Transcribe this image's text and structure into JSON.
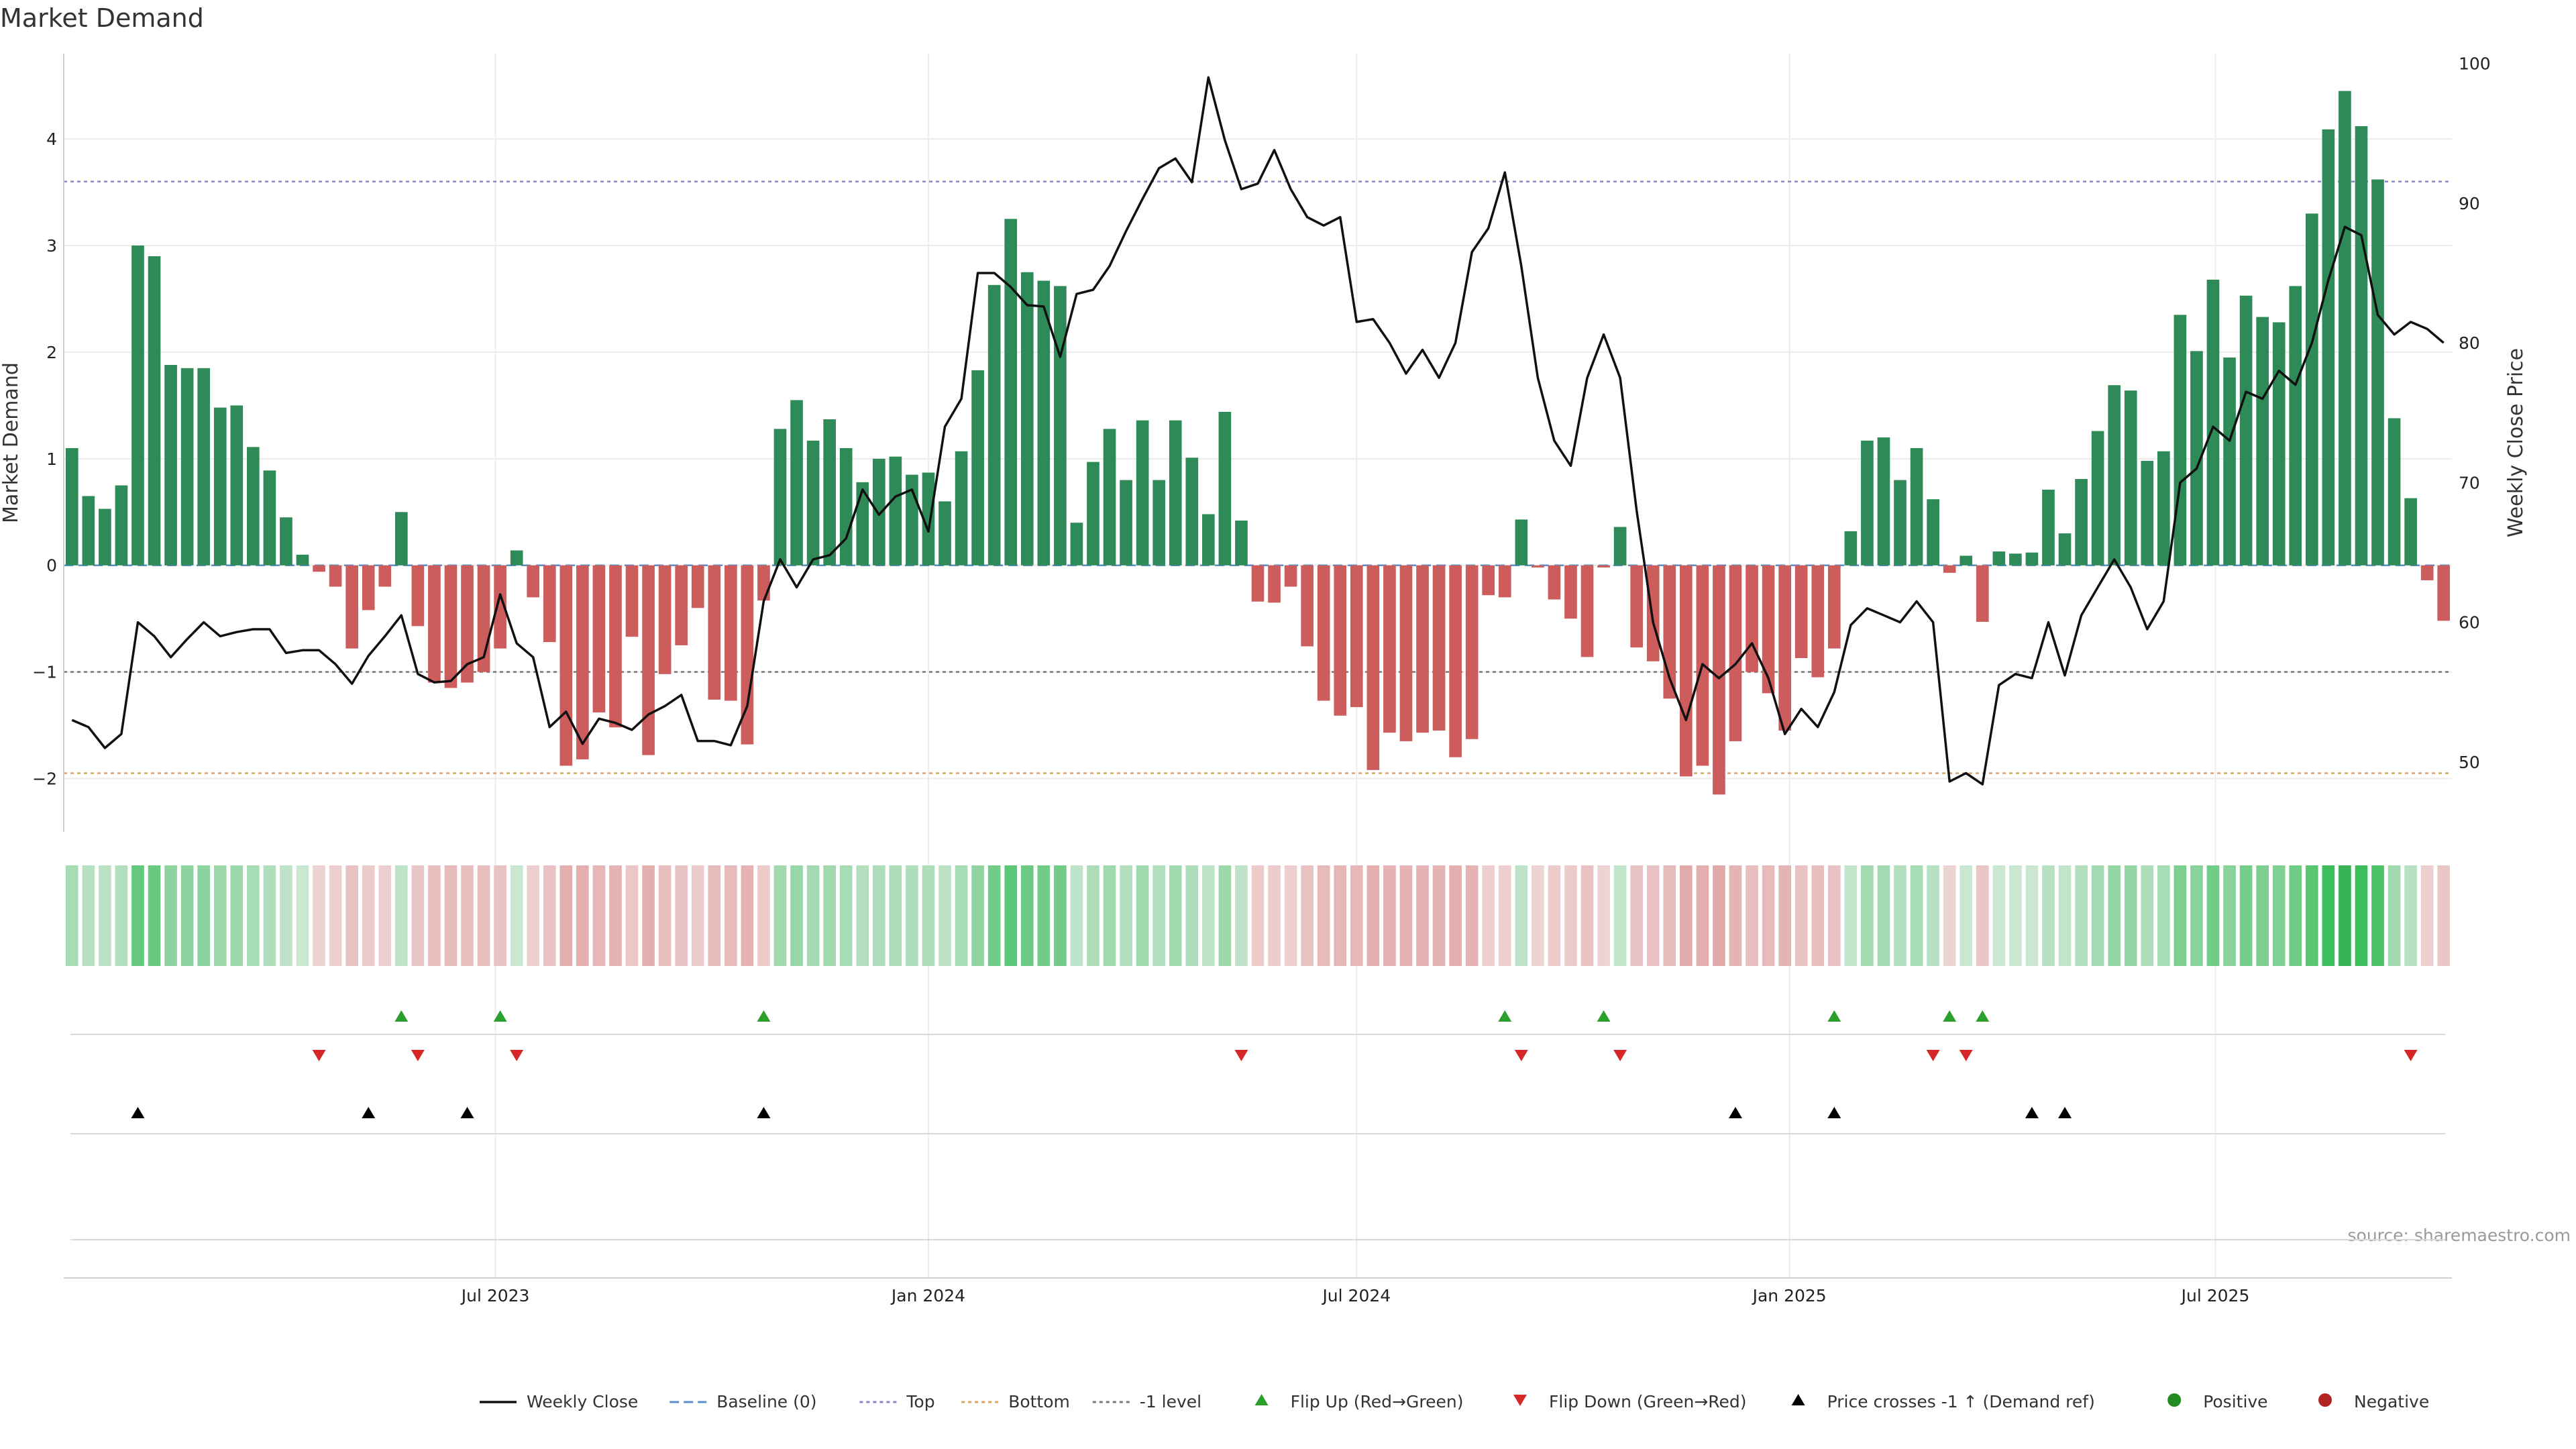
{
  "chart_data": {
    "type": "bar",
    "title": "Market Demand",
    "ylabel": "Market Demand",
    "y2label": "Weekly Close Price",
    "ylim": [
      -2.5,
      4.8
    ],
    "y2lim": [
      45,
      100.7
    ],
    "yticks": [
      -2,
      -1,
      0,
      1,
      2,
      3,
      4
    ],
    "yticklabels": [
      "−2",
      "−1",
      "0",
      "1",
      "2",
      "3",
      "4"
    ],
    "y2ticks": [
      50,
      60,
      70,
      80,
      90,
      100
    ],
    "x_start": "2023-01-02",
    "x_step_days": 7,
    "xticks": [
      {
        "date": "2023-07-01",
        "label": "Jul 2023"
      },
      {
        "date": "2024-01-01",
        "label": "Jan 2024"
      },
      {
        "date": "2024-07-01",
        "label": "Jul 2024"
      },
      {
        "date": "2025-01-01",
        "label": "Jan 2025"
      },
      {
        "date": "2025-07-01",
        "label": "Jul 2025"
      }
    ],
    "reference_lines": [
      {
        "name": "Top",
        "value": 3.6,
        "color": "#8e83c9"
      },
      {
        "name": "-1 level",
        "value": -1.0,
        "color": "#777777"
      },
      {
        "name": "Bottom",
        "value": -1.95,
        "color": "#e0a35a"
      },
      {
        "name": "Baseline (0)",
        "value": 0,
        "color": "#5b8ec4"
      }
    ],
    "series": [
      {
        "name": "Market Demand",
        "type": "bar",
        "values": [
          1.1,
          0.65,
          0.53,
          0.75,
          3.0,
          2.9,
          1.88,
          1.85,
          1.85,
          1.48,
          1.5,
          1.11,
          0.89,
          0.45,
          0.1,
          -0.06,
          -0.2,
          -0.78,
          -0.42,
          -0.2,
          0.5,
          -0.57,
          -1.1,
          -1.15,
          -1.1,
          -1.0,
          -0.78,
          0.14,
          -0.3,
          -0.72,
          -1.88,
          -1.82,
          -1.38,
          -1.52,
          -0.67,
          -1.78,
          -1.02,
          -0.75,
          -0.4,
          -1.26,
          -1.27,
          -1.68,
          -0.33,
          1.28,
          1.55,
          1.17,
          1.37,
          1.1,
          0.78,
          1.0,
          1.02,
          0.85,
          0.87,
          0.6,
          1.07,
          1.83,
          2.63,
          3.25,
          2.75,
          2.67,
          2.62,
          0.4,
          0.97,
          1.28,
          0.8,
          1.36,
          0.8,
          1.36,
          1.01,
          0.48,
          1.44,
          0.42,
          -0.34,
          -0.35,
          -0.2,
          -0.76,
          -1.27,
          -1.41,
          -1.33,
          -1.92,
          -1.57,
          -1.65,
          -1.57,
          -1.55,
          -1.8,
          -1.63,
          -0.28,
          -0.3,
          0.43,
          -0.02,
          -0.32,
          -0.5,
          -0.86,
          -0.02,
          0.36,
          -0.77,
          -0.9,
          -1.25,
          -1.98,
          -1.88,
          -2.15,
          -1.65,
          -1.0,
          -1.2,
          -1.55,
          -0.87,
          -1.05,
          -0.78,
          0.32,
          1.17,
          1.2,
          0.8,
          1.1,
          0.62,
          -0.07,
          0.09,
          -0.53,
          0.13,
          0.11,
          0.12,
          0.71,
          0.3,
          0.81,
          1.26,
          1.69,
          1.64,
          0.98,
          1.07,
          2.35,
          2.01,
          2.68,
          1.95,
          2.53,
          2.33,
          2.28,
          2.62,
          3.3,
          4.09,
          4.45,
          4.12,
          3.62,
          1.38,
          0.63,
          -0.14,
          -0.52
        ]
      },
      {
        "name": "Weekly Close",
        "type": "line",
        "values": [
          53,
          52.5,
          51,
          52,
          60,
          59,
          57.5,
          58.8,
          60,
          59,
          59.3,
          59.5,
          59.5,
          57.8,
          58,
          58,
          57,
          55.6,
          57.6,
          59,
          60.5,
          56.3,
          55.7,
          55.8,
          57,
          57.5,
          62,
          58.5,
          57.5,
          52.5,
          53.6,
          51.3,
          53.1,
          52.8,
          52.3,
          53.4,
          54,
          54.8,
          51.5,
          51.5,
          51.2,
          54,
          61.5,
          64.5,
          62.5,
          64.5,
          64.8,
          66,
          69.5,
          67.7,
          69,
          69.5,
          66.5,
          74,
          76,
          85,
          85,
          84,
          82.7,
          82.6,
          79,
          83.5,
          83.8,
          85.5,
          88,
          90.3,
          92.5,
          93.2,
          91.5,
          99,
          94.5,
          91,
          91.4,
          93.8,
          91,
          89,
          88.4,
          89,
          81.5,
          81.7,
          80,
          77.8,
          79.5,
          77.5,
          80,
          86.5,
          88.2,
          92.2,
          85.5,
          77.5,
          73,
          71.2,
          77.5,
          80.6,
          77.5,
          68,
          60,
          56,
          53,
          57,
          56,
          57,
          58.5,
          56,
          52,
          53.8,
          52.5,
          55,
          59.8,
          61,
          60.5,
          60,
          61.5,
          60,
          48.6,
          49.2,
          48.4,
          55.5,
          56.3,
          56,
          60,
          56.2,
          60.5,
          62.5,
          64.5,
          62.5,
          59.5,
          61.5,
          70,
          71,
          74,
          73,
          76.5,
          76,
          78,
          77,
          80,
          84.5,
          88.3,
          87.7,
          82,
          80.6,
          81.5,
          81,
          80
        ]
      }
    ],
    "signals": [
      {
        "name": "Flip Up (Red→Green)",
        "marker": "triangle-up",
        "color": "#2ca02c",
        "indices": [
          20,
          26,
          42,
          87,
          93,
          107,
          114,
          116
        ]
      },
      {
        "name": "Flip Down (Green→Red)",
        "marker": "triangle-down",
        "color": "#d62728",
        "indices": [
          15,
          21,
          27,
          71,
          88,
          94,
          113,
          115,
          142
        ]
      },
      {
        "name": "Price crosses -1 ↑ (Demand ref)",
        "marker": "triangle-up",
        "color": "#000000",
        "indices": [
          4,
          18,
          24,
          42,
          101,
          107,
          119,
          121
        ]
      }
    ],
    "colors": {
      "positive": "#2e8b57",
      "negative": "#cd5c5c",
      "price": "#111111"
    },
    "grid": true,
    "legend_position": "bottom",
    "legend": [
      {
        "label": "Weekly Close",
        "kind": "line",
        "color": "#111111"
      },
      {
        "label": "Baseline (0)",
        "kind": "dash",
        "color": "#5b8ec4"
      },
      {
        "label": "Top",
        "kind": "dot",
        "color": "#8e83c9"
      },
      {
        "label": "Bottom",
        "kind": "dot",
        "color": "#e0a35a"
      },
      {
        "label": "-1 level",
        "kind": "dot",
        "color": "#777777"
      },
      {
        "label": "Flip Up (Red→Green)",
        "kind": "tri-up",
        "color": "#2ca02c"
      },
      {
        "label": "Flip Down (Green→Red)",
        "kind": "tri-down",
        "color": "#d62728"
      },
      {
        "label": "Price crosses -1 ↑ (Demand ref)",
        "kind": "tri-up",
        "color": "#000000"
      },
      {
        "label": "Positive",
        "kind": "circle",
        "color": "#228b22"
      },
      {
        "label": "Negative",
        "kind": "circle",
        "color": "#b22222"
      }
    ],
    "source": "source: sharemaestro.com"
  }
}
